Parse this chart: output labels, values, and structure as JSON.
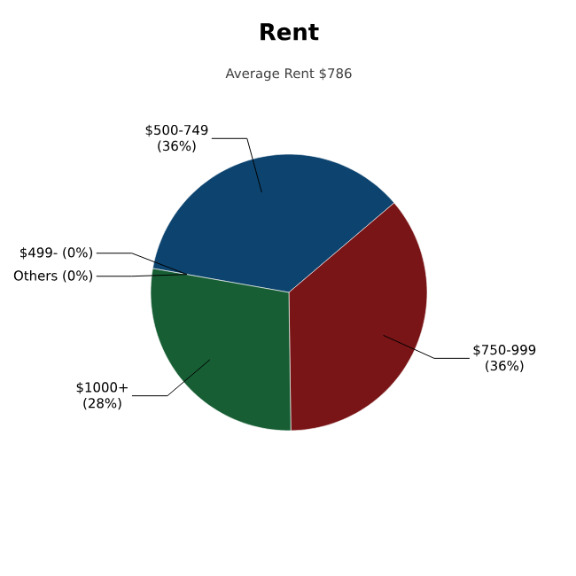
{
  "chart_data": {
    "type": "pie",
    "title": "Rent",
    "subtitle": "Average Rent  $786",
    "categories": [
      "$500-749",
      "$750-999",
      "$1000+",
      "$499-",
      "Others"
    ],
    "values": [
      36,
      36,
      28,
      0,
      0
    ],
    "value_labels": [
      "(36%)",
      "(36%)",
      "(28%)",
      "(0%)",
      "(0%)"
    ],
    "colors": [
      "#0d446f",
      "#7a1517",
      "#175e34",
      "#3a7fc0",
      "#999999"
    ]
  }
}
